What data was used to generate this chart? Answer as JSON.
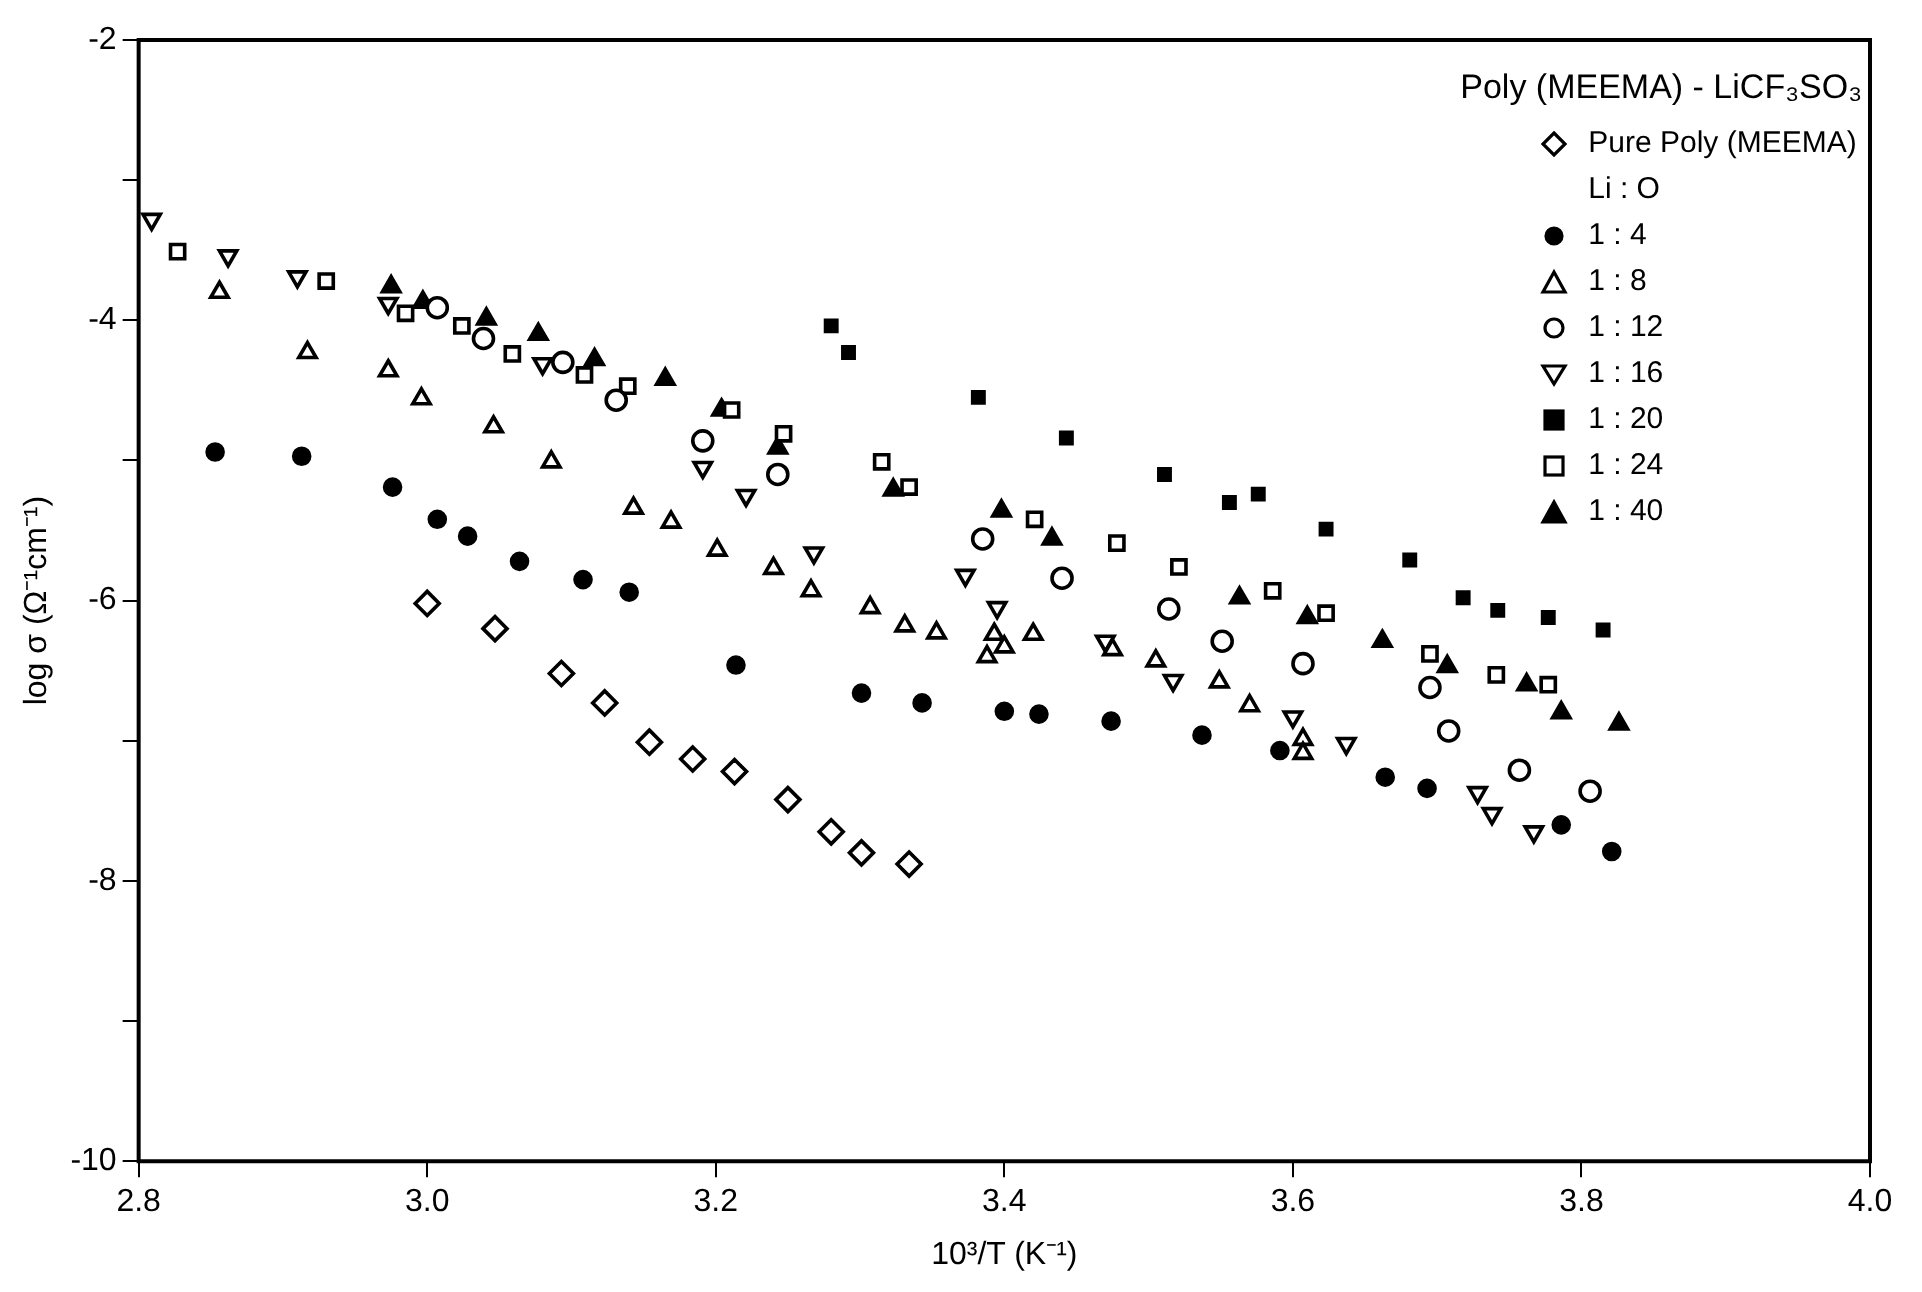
{
  "chart_data": {
    "type": "scatter",
    "xlabel": "10³/T (K⁻¹)",
    "ylabel": "log σ (Ω⁻¹cm⁻¹)",
    "legend_title": "Poly (MEEMA) - LiCF₃SO₃",
    "annotations": [
      "Li : O"
    ],
    "legend": "top right",
    "grid": false,
    "xlim": [
      2.8,
      4.0
    ],
    "xticks": [
      2.8,
      {
        "value": 3.0,
        "label": "3.0"
      },
      3.2,
      3.4,
      3.6,
      3.8,
      {
        "value": 4.0,
        "label": "4.0"
      }
    ],
    "ylim": [
      -10,
      -2
    ],
    "yticks": [
      -10,
      {
        "value": -9,
        "label": null
      },
      -8,
      {
        "value": -7,
        "label": null
      },
      -6,
      {
        "value": -5,
        "label": null
      },
      -4,
      {
        "value": -3,
        "label": null
      },
      -2
    ],
    "series": [
      {
        "name": "Pure Poly (MEEMA)",
        "marker": "diamond-open",
        "color": "#000000",
        "x": [
          3.0,
          3.047,
          3.093,
          3.123,
          3.154,
          3.184,
          3.213,
          3.25,
          3.28,
          3.301,
          3.334
        ],
        "values": [
          -6.02,
          -6.2,
          -6.52,
          -6.73,
          -7.01,
          -7.13,
          -7.22,
          -7.42,
          -7.65,
          -7.8,
          -7.88
        ]
      },
      {
        "name": "1 : 4",
        "marker": "circle",
        "color": "#000000",
        "x": [
          2.853,
          2.913,
          2.976,
          3.007,
          3.028,
          3.064,
          3.108,
          3.14,
          3.214,
          3.301,
          3.343,
          3.4,
          3.424,
          3.474,
          3.537,
          3.591,
          3.664,
          3.693,
          3.786,
          3.821
        ],
        "values": [
          -4.94,
          -4.97,
          -5.19,
          -5.42,
          -5.54,
          -5.72,
          -5.85,
          -5.94,
          -6.46,
          -6.66,
          -6.73,
          -6.79,
          -6.81,
          -6.86,
          -6.96,
          -7.07,
          -7.26,
          -7.34,
          -7.6,
          -7.79
        ]
      },
      {
        "name": "1 : 8",
        "marker": "triangle-open",
        "color": "#000000",
        "x": [
          2.856,
          2.917,
          2.973,
          2.996,
          3.046,
          3.086,
          3.143,
          3.169,
          3.201,
          3.24,
          3.266,
          3.307,
          3.331,
          3.353,
          3.393,
          3.388,
          3.4,
          3.42,
          3.475,
          3.505,
          3.549,
          3.57,
          3.607,
          3.607
        ],
        "values": [
          -3.8,
          -4.23,
          -4.36,
          -4.56,
          -4.76,
          -5.01,
          -5.34,
          -5.44,
          -5.64,
          -5.77,
          -5.93,
          -6.05,
          -6.18,
          -6.23,
          -6.24,
          -6.4,
          -6.33,
          -6.24,
          -6.35,
          -6.43,
          -6.58,
          -6.75,
          -6.99,
          -7.09
        ]
      },
      {
        "name": "1 : 12",
        "marker": "circle-open",
        "color": "#000000",
        "x": [
          3.007,
          3.039,
          3.094,
          3.131,
          3.191,
          3.243,
          3.385,
          3.44,
          3.514,
          3.551,
          3.607,
          3.695,
          3.708,
          3.757,
          3.806
        ],
        "values": [
          -3.91,
          -4.13,
          -4.3,
          -4.57,
          -4.86,
          -5.1,
          -5.56,
          -5.84,
          -6.06,
          -6.29,
          -6.45,
          -6.62,
          -6.93,
          -7.21,
          -7.36
        ]
      },
      {
        "name": "1 : 16",
        "marker": "triangle-down-open",
        "color": "#000000",
        "x": [
          2.809,
          2.862,
          2.91,
          2.973,
          3.08,
          3.191,
          3.221,
          3.268,
          3.373,
          3.395,
          3.47,
          3.517,
          3.6,
          3.637,
          3.728,
          3.738,
          3.767
        ],
        "values": [
          -3.28,
          -3.54,
          -3.69,
          -3.88,
          -4.31,
          -5.05,
          -5.25,
          -5.66,
          -5.82,
          -6.05,
          -6.29,
          -6.57,
          -6.83,
          -7.02,
          -7.37,
          -7.52,
          -7.65
        ]
      },
      {
        "name": "1 : 20",
        "marker": "square",
        "color": "#000000",
        "x": [
          3.28,
          3.292,
          3.382,
          3.443,
          3.511,
          3.556,
          3.576,
          3.623,
          3.681,
          3.718,
          3.742,
          3.777,
          3.815
        ],
        "values": [
          -4.04,
          -4.23,
          -4.55,
          -4.84,
          -5.1,
          -5.3,
          -5.24,
          -5.49,
          -5.71,
          -5.98,
          -6.07,
          -6.12,
          -6.21
        ]
      },
      {
        "name": "1 : 24",
        "marker": "square-open",
        "color": "#000000",
        "x": [
          2.827,
          2.93,
          2.985,
          3.024,
          3.059,
          3.109,
          3.139,
          3.211,
          3.247,
          3.315,
          3.334,
          3.421,
          3.478,
          3.521,
          3.586,
          3.623,
          3.695,
          3.741,
          3.777
        ],
        "values": [
          -3.51,
          -3.72,
          -3.95,
          -4.04,
          -4.24,
          -4.39,
          -4.47,
          -4.64,
          -4.81,
          -5.01,
          -5.19,
          -5.42,
          -5.59,
          -5.76,
          -5.93,
          -6.09,
          -6.38,
          -6.53,
          -6.6
        ]
      },
      {
        "name": "1 : 40",
        "marker": "triangle",
        "color": "#000000",
        "x": [
          2.975,
          2.997,
          3.041,
          3.077,
          3.116,
          3.165,
          3.204,
          3.243,
          3.323,
          3.398,
          3.433,
          3.563,
          3.61,
          3.662,
          3.707,
          3.762,
          3.786,
          3.826
        ],
        "values": [
          -3.76,
          -3.87,
          -3.99,
          -4.1,
          -4.28,
          -4.42,
          -4.64,
          -4.91,
          -5.21,
          -5.36,
          -5.56,
          -5.98,
          -6.12,
          -6.29,
          -6.47,
          -6.6,
          -6.8,
          -6.88
        ]
      }
    ]
  }
}
